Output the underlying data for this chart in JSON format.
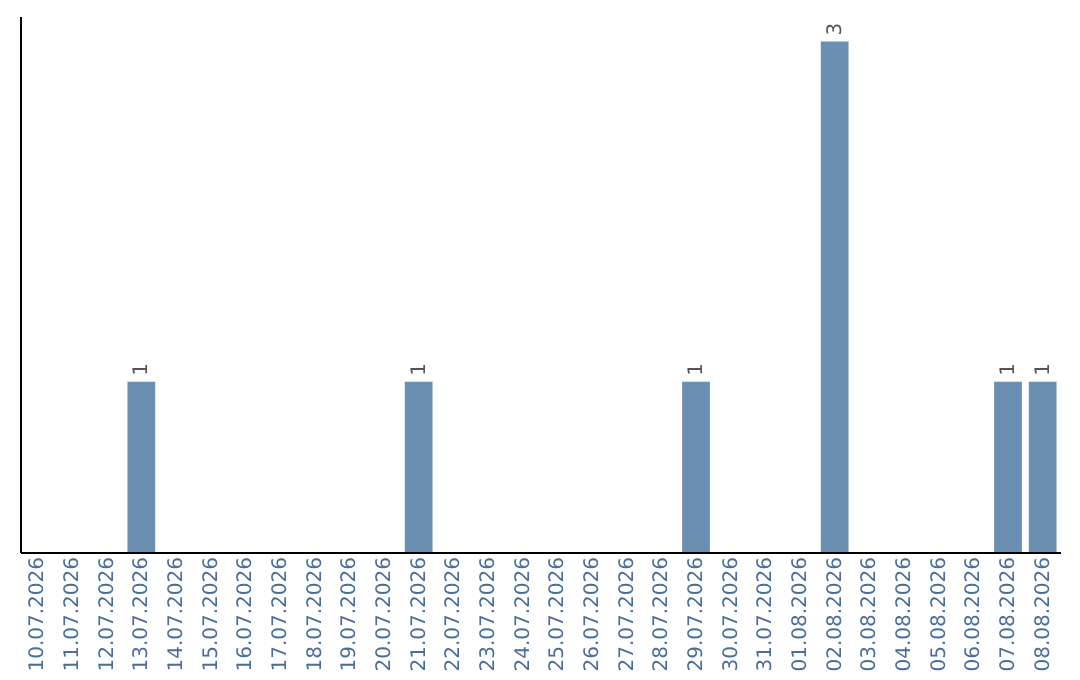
{
  "chart_data": {
    "type": "bar",
    "categories": [
      "10.07.2026",
      "11.07.2026",
      "12.07.2026",
      "13.07.2026",
      "14.07.2026",
      "15.07.2026",
      "16.07.2026",
      "17.07.2026",
      "18.07.2026",
      "19.07.2026",
      "20.07.2026",
      "21.07.2026",
      "22.07.2026",
      "23.07.2026",
      "24.07.2026",
      "25.07.2026",
      "26.07.2026",
      "27.07.2026",
      "28.07.2026",
      "29.07.2026",
      "30.07.2026",
      "31.07.2026",
      "01.08.2026",
      "02.08.2026",
      "03.08.2026",
      "04.08.2026",
      "05.08.2026",
      "06.08.2026",
      "07.08.2026",
      "08.08.2026"
    ],
    "values": [
      0,
      0,
      0,
      1,
      0,
      0,
      0,
      0,
      0,
      0,
      0,
      1,
      0,
      0,
      0,
      0,
      0,
      0,
      0,
      1,
      0,
      0,
      0,
      3,
      0,
      0,
      0,
      0,
      1,
      1
    ],
    "value_labels": [
      null,
      null,
      null,
      "1",
      null,
      null,
      null,
      null,
      null,
      null,
      null,
      "1",
      null,
      null,
      null,
      null,
      null,
      null,
      null,
      "1",
      null,
      null,
      null,
      "3",
      null,
      null,
      null,
      null,
      "1",
      "1"
    ],
    "color": "#6b8fb0",
    "ylim": [
      0,
      3.15
    ],
    "tick_labels": "x"
  }
}
